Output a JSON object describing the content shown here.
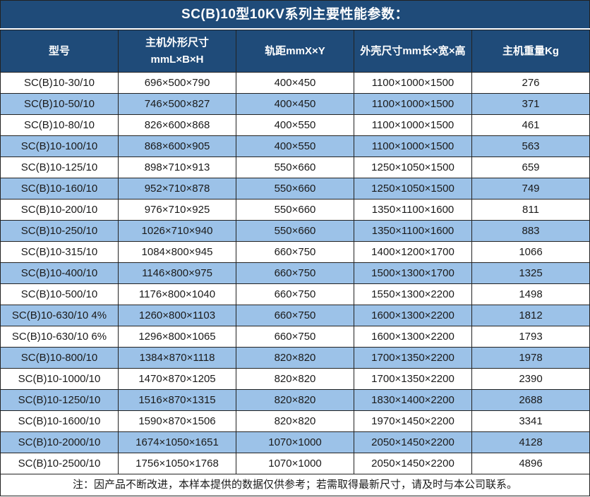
{
  "title": "SC(B)10型10KV系列主要性能参数：",
  "colors": {
    "header_bg": "#1F4B79",
    "alt_row_bg": "#9CC2E8",
    "border": "#222222",
    "header_text": "#ffffff",
    "body_text": "#1a1a1a"
  },
  "table": {
    "headers": [
      "型号",
      "主机外形尺寸\nmmL×B×H",
      "轨距mmX×Y",
      "外壳尺寸mm长×宽×高",
      "主机重量Kg"
    ],
    "rows": [
      [
        "SC(B)10-30/10",
        "696×500×790",
        "400×450",
        "1100×1000×1500",
        "276"
      ],
      [
        "SC(B)10-50/10",
        "746×500×827",
        "400×450",
        "1100×1000×1500",
        "371"
      ],
      [
        "SC(B)10-80/10",
        "826×600×868",
        "400×550",
        "1100×1000×1500",
        "461"
      ],
      [
        "SC(B)10-100/10",
        "868×600×905",
        "400×550",
        "1100×1000×1500",
        "563"
      ],
      [
        "SC(B)10-125/10",
        "898×710×913",
        "550×660",
        "1250×1050×1500",
        "659"
      ],
      [
        "SC(B)10-160/10",
        "952×710×878",
        "550×660",
        "1250×1050×1500",
        "749"
      ],
      [
        "SC(B)10-200/10",
        "976×710×925",
        "550×660",
        "1350×1100×1600",
        "811"
      ],
      [
        "SC(B)10-250/10",
        "1026×710×940",
        "550×660",
        "1350×1100×1600",
        "883"
      ],
      [
        "SC(B)10-315/10",
        "1084×800×945",
        "660×750",
        "1400×1200×1700",
        "1066"
      ],
      [
        "SC(B)10-400/10",
        "1146×800×975",
        "660×750",
        "1500×1300×1700",
        "1325"
      ],
      [
        "SC(B)10-500/10",
        "1176×800×1040",
        "660×750",
        "1550×1300×2200",
        "1498"
      ],
      [
        "SC(B)10-630/10 4%",
        "1260×800×1103",
        "660×750",
        "1600×1300×2200",
        "1812"
      ],
      [
        "SC(B)10-630/10 6%",
        "1296×800×1065",
        "660×750",
        "1600×1300×2200",
        "1793"
      ],
      [
        "SC(B)10-800/10",
        "1384×870×1118",
        "820×820",
        "1700×1350×2200",
        "1978"
      ],
      [
        "SC(B)10-1000/10",
        "1470×870×1205",
        "820×820",
        "1700×1350×2200",
        "2390"
      ],
      [
        "SC(B)10-1250/10",
        "1516×870×1315",
        "820×820",
        "1830×1400×2200",
        "2688"
      ],
      [
        "SC(B)10-1600/10",
        "1590×870×1506",
        "820×820",
        "1970×1450×2200",
        "3341"
      ],
      [
        "SC(B)10-2000/10",
        "1674×1050×1651",
        "1070×1000",
        "2050×1450×2200",
        "4128"
      ],
      [
        "SC(B)10-2500/10",
        "1756×1050×1768",
        "1070×1000",
        "2050×1450×2200",
        "4896"
      ]
    ]
  },
  "note": "注：因产品不断改进，本样本提供的数据仅供参考；若需取得最新尺寸，请及时与本公司联系。"
}
